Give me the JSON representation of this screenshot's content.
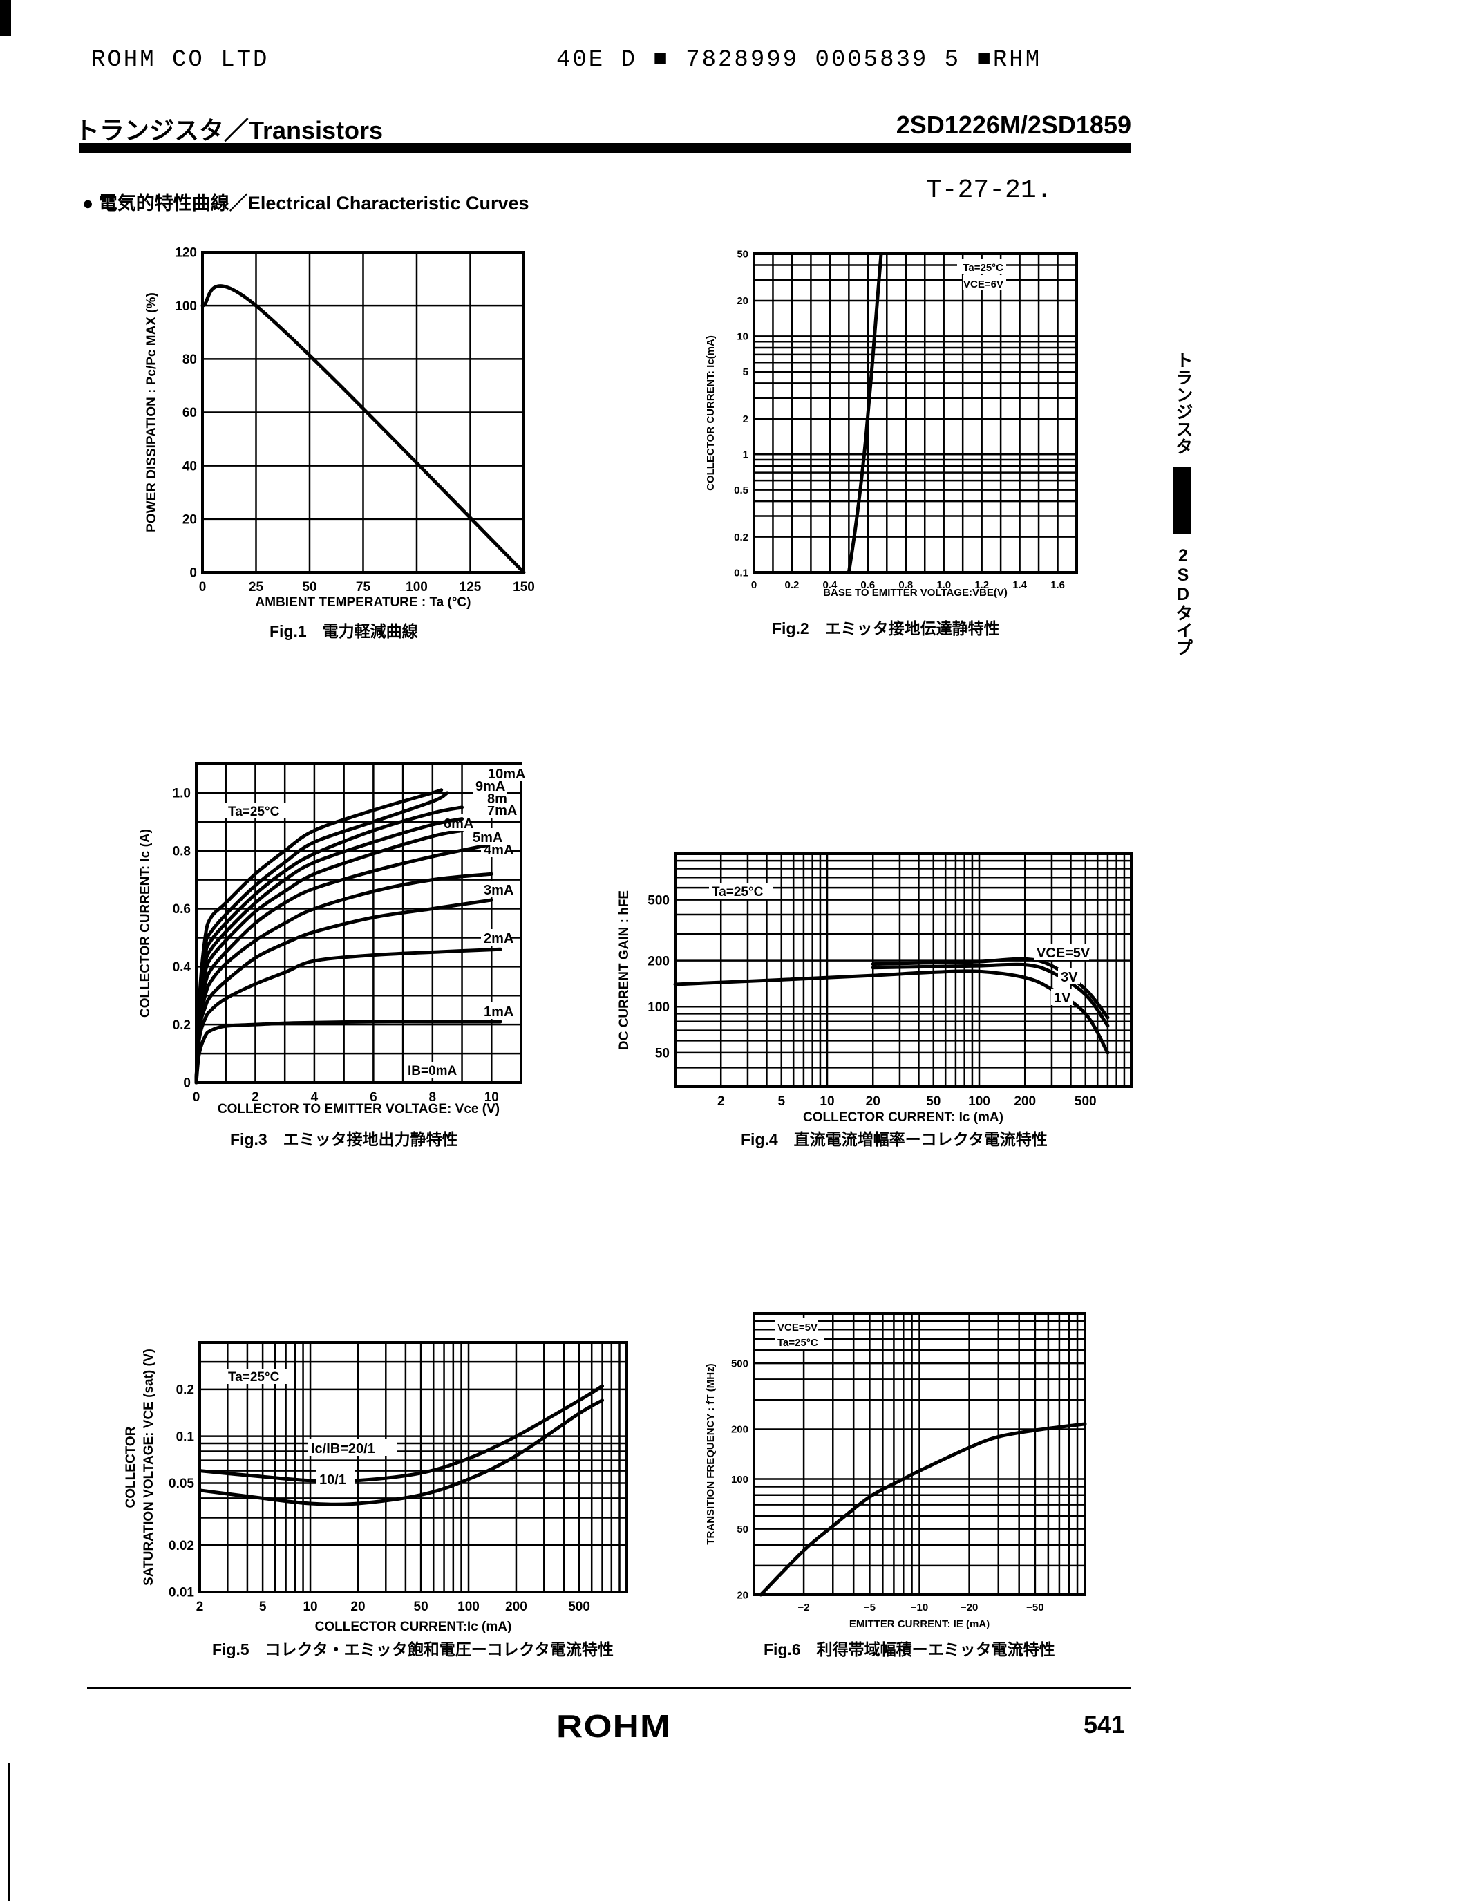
{
  "header": {
    "company": "ROHM CO LTD",
    "code_line": "40E D ■ 7828999 0005839 5 ■RHM",
    "category": "トランジスタ／Transistors",
    "part_numbers": "2SD1226M/2SD1859",
    "section": "● 電気的特性曲線／Electrical Characteristic Curves",
    "doc_code": "T-27-21."
  },
  "side_tab": {
    "top": "トランジスタ",
    "bottom": "2SDタイプ"
  },
  "footer": {
    "logo": "ROHM",
    "page": "541"
  },
  "chart_data": [
    {
      "type": "line",
      "caption": "Fig.1　電力軽減曲線",
      "xlabel": "AMBIENT TEMPERATURE : Ta (°C)",
      "ylabel": [
        "POWER DISSIPATION : Pc/Pc MAX (%)"
      ],
      "x_scale": "linear",
      "y_scale": "linear",
      "xlim": [
        0,
        150
      ],
      "ylim": [
        0,
        120
      ],
      "grid": true,
      "xticks": [
        0,
        25,
        50,
        75,
        100,
        125,
        150
      ],
      "xtick_labels": [
        "0",
        "25",
        "50",
        "75",
        "100",
        "125",
        "150"
      ],
      "yticks": [
        0,
        20,
        40,
        60,
        80,
        100,
        120
      ],
      "ytick_labels": [
        "0",
        "20",
        "40",
        "60",
        "80",
        "100",
        "120"
      ],
      "annotations": [],
      "series": [
        {
          "x": [
            0,
            25,
            150
          ],
          "y": [
            100,
            100,
            0
          ]
        }
      ]
    },
    {
      "type": "line",
      "caption": "Fig.2　エミッタ接地伝達静特性",
      "xlabel": "BASE TO EMITTER VOLTAGE:VBE(V)",
      "ylabel": [
        "COLLECTOR CURRENT: Ic(mA)"
      ],
      "x_scale": "linear",
      "y_scale": "log",
      "xlim": [
        0,
        1.7
      ],
      "ylim": [
        0.1,
        50
      ],
      "grid": true,
      "xticks": [
        0,
        0.2,
        0.4,
        0.6,
        0.8,
        1.0,
        1.2,
        1.4,
        1.6
      ],
      "xtick_labels": [
        "0",
        "0.2",
        "0.4",
        "0.6",
        "0.8",
        "1.0",
        "1.2",
        "1.4",
        "1.6"
      ],
      "yticks": [
        0.1,
        0.2,
        0.5,
        1,
        2,
        5,
        10,
        20,
        50
      ],
      "ytick_labels": [
        "0.1",
        "0.2",
        "0.5",
        "1",
        "2",
        "5",
        "10",
        "20",
        "50"
      ],
      "annotations": [
        "Ta=25°C",
        "VCE=6V"
      ],
      "series": [
        {
          "x": [
            0.5,
            0.53,
            0.56,
            0.59,
            0.62,
            0.65,
            0.67
          ],
          "y": [
            0.1,
            0.21,
            0.5,
            1.4,
            5,
            20,
            50
          ]
        }
      ]
    },
    {
      "type": "line",
      "caption": "Fig.3　エミッタ接地出力静特性",
      "xlabel": "COLLECTOR TO EMITTER VOLTAGE: Vce (V)",
      "ylabel": [
        "COLLECTOR CURRENT: Ic (A)"
      ],
      "x_scale": "linear",
      "y_scale": "linear",
      "xlim": [
        0,
        11
      ],
      "ylim": [
        0,
        1.1
      ],
      "grid": true,
      "xticks": [
        0,
        2,
        4,
        6,
        8,
        10
      ],
      "xtick_labels": [
        "0",
        "2",
        "4",
        "6",
        "8",
        "10"
      ],
      "yticks": [
        0,
        0.2,
        0.4,
        0.6,
        0.8,
        1.0
      ],
      "ytick_labels": [
        "0",
        "0.2",
        "0.4",
        "0.6",
        "0.8",
        "1.0"
      ],
      "annotations": [
        "Ta=25°C",
        "IB=0mA"
      ],
      "series": [
        {
          "name": "1mA",
          "x": [
            0,
            0.1,
            0.3,
            0.5,
            1,
            2,
            3,
            4,
            6,
            8,
            10.3
          ],
          "y": [
            0,
            0.1,
            0.16,
            0.18,
            0.195,
            0.2,
            0.205,
            0.207,
            0.21,
            0.21,
            0.21
          ]
        },
        {
          "name": "2mA",
          "x": [
            0,
            0.1,
            0.3,
            0.5,
            1,
            2,
            3,
            4,
            6,
            8,
            10.3
          ],
          "y": [
            0,
            0.15,
            0.22,
            0.25,
            0.29,
            0.34,
            0.38,
            0.42,
            0.44,
            0.45,
            0.46
          ]
        },
        {
          "name": "3mA",
          "x": [
            0,
            0.1,
            0.3,
            0.5,
            1,
            2,
            3,
            4,
            6,
            8,
            10
          ],
          "y": [
            0,
            0.18,
            0.26,
            0.3,
            0.35,
            0.43,
            0.48,
            0.52,
            0.57,
            0.6,
            0.63
          ]
        },
        {
          "name": "4mA",
          "x": [
            0,
            0.1,
            0.3,
            0.5,
            1,
            2,
            3,
            4,
            6,
            8,
            10
          ],
          "y": [
            0,
            0.2,
            0.3,
            0.35,
            0.41,
            0.49,
            0.55,
            0.6,
            0.66,
            0.7,
            0.72
          ]
        },
        {
          "name": "5mA",
          "x": [
            0,
            0.1,
            0.3,
            0.5,
            1,
            2,
            3,
            4,
            6,
            8,
            9.9
          ],
          "y": [
            0,
            0.22,
            0.34,
            0.39,
            0.45,
            0.55,
            0.62,
            0.67,
            0.73,
            0.78,
            0.82
          ]
        },
        {
          "name": "6mA",
          "x": [
            0,
            0.1,
            0.3,
            0.5,
            1,
            2,
            3,
            4,
            6,
            8,
            9
          ],
          "y": [
            0,
            0.24,
            0.38,
            0.43,
            0.49,
            0.59,
            0.66,
            0.72,
            0.79,
            0.85,
            0.87
          ]
        },
        {
          "name": "7mA",
          "x": [
            0,
            0.1,
            0.3,
            0.5,
            1,
            2,
            3,
            4,
            6,
            8,
            9
          ],
          "y": [
            0,
            0.25,
            0.41,
            0.46,
            0.52,
            0.62,
            0.7,
            0.76,
            0.83,
            0.89,
            0.91
          ]
        },
        {
          "name": "8m",
          "x": [
            0,
            0.1,
            0.3,
            0.5,
            1,
            2,
            3,
            4,
            6,
            8,
            9
          ],
          "y": [
            0,
            0.26,
            0.44,
            0.49,
            0.55,
            0.65,
            0.73,
            0.79,
            0.87,
            0.93,
            0.95
          ]
        },
        {
          "name": "9mA",
          "x": [
            0,
            0.1,
            0.3,
            0.5,
            1,
            2,
            3,
            4,
            6,
            8,
            8.5
          ],
          "y": [
            0,
            0.27,
            0.47,
            0.52,
            0.58,
            0.68,
            0.76,
            0.83,
            0.9,
            0.97,
            1.0
          ]
        },
        {
          "name": "10mA",
          "x": [
            0,
            0.1,
            0.3,
            0.5,
            1,
            2,
            3,
            4,
            6,
            8,
            8.3
          ],
          "y": [
            0,
            0.28,
            0.5,
            0.57,
            0.62,
            0.72,
            0.8,
            0.87,
            0.94,
            1.0,
            1.01
          ]
        }
      ]
    },
    {
      "type": "line",
      "caption": "Fig.4　直流電流増幅率ーコレクタ電流特性",
      "xlabel": "COLLECTOR CURRENT: Ic (mA)",
      "ylabel": [
        "DC CURRENT GAIN : hFE"
      ],
      "x_scale": "log",
      "y_scale": "log",
      "xlim": [
        1,
        1000
      ],
      "ylim": [
        30,
        1000
      ],
      "grid": true,
      "xticks": [
        2,
        5,
        10,
        20,
        50,
        100,
        200,
        500
      ],
      "xtick_labels": [
        "2",
        "5",
        "10",
        "20",
        "50",
        "100",
        "200",
        "500"
      ],
      "yticks": [
        50,
        100,
        200,
        500
      ],
      "ytick_labels": [
        "50",
        "100",
        "200",
        "500"
      ],
      "annotations": [
        "Ta=25°C"
      ],
      "series": [
        {
          "name": "VCE=5V",
          "x": [
            20,
            50,
            100,
            200,
            300,
            500,
            700
          ],
          "y": [
            190,
            194,
            197,
            205,
            185,
            130,
            85
          ]
        },
        {
          "name": "3V",
          "x": [
            20,
            50,
            100,
            200,
            300,
            500,
            700
          ],
          "y": [
            180,
            183,
            185,
            188,
            168,
            120,
            75
          ]
        },
        {
          "name": "1V",
          "x": [
            1,
            5,
            20,
            50,
            100,
            200,
            300,
            500,
            700
          ],
          "y": [
            140,
            150,
            160,
            168,
            170,
            155,
            130,
            90,
            50
          ]
        }
      ]
    },
    {
      "type": "line",
      "caption": "Fig.5　コレクタ・エミッタ飽和電圧ーコレクタ電流特性",
      "xlabel": "COLLECTOR CURRENT:Ic (mA)",
      "ylabel": [
        "COLLECTOR",
        "SATURATION VOLTAGE: VCE (sat) (V)"
      ],
      "x_scale": "log",
      "y_scale": "log",
      "xlim": [
        2,
        1000
      ],
      "ylim": [
        0.01,
        0.4
      ],
      "grid": true,
      "xticks": [
        2,
        5,
        10,
        20,
        50,
        100,
        200,
        500
      ],
      "xtick_labels": [
        "2",
        "5",
        "10",
        "20",
        "50",
        "100",
        "200",
        "500"
      ],
      "yticks": [
        0.01,
        0.02,
        0.05,
        0.1,
        0.2
      ],
      "ytick_labels": [
        "0.01",
        "0.02",
        "0.05",
        "0.1",
        "0.2"
      ],
      "annotations": [
        "Ta=25°C"
      ],
      "series": [
        {
          "name": "Ic/IB=20/1",
          "x": [
            2,
            5,
            10,
            20,
            50,
            100,
            200,
            500,
            700
          ],
          "y": [
            0.06,
            0.055,
            0.052,
            0.052,
            0.058,
            0.072,
            0.1,
            0.17,
            0.21
          ]
        },
        {
          "name": "10/1",
          "x": [
            2,
            5,
            10,
            20,
            50,
            100,
            200,
            500,
            700
          ],
          "y": [
            0.045,
            0.04,
            0.037,
            0.037,
            0.042,
            0.053,
            0.075,
            0.14,
            0.17
          ]
        }
      ]
    },
    {
      "type": "line",
      "caption": "Fig.6　利得帯域幅積ーエミッタ電流特性",
      "xlabel": "EMITTER CURRENT: IE (mA)",
      "ylabel": [
        "TRANSITION FREQUENCY : fT (MHz)"
      ],
      "x_scale": "log",
      "y_scale": "log",
      "xlim": [
        -1,
        -100
      ],
      "ylim": [
        20,
        1000
      ],
      "grid": true,
      "xticks": [
        -2,
        -5,
        -10,
        -20,
        -50
      ],
      "xtick_labels": [
        "−2",
        "−5",
        "−10",
        "−20",
        "−50"
      ],
      "yticks": [
        20,
        50,
        100,
        200,
        500
      ],
      "ytick_labels": [
        "20",
        "50",
        "100",
        "200",
        "500"
      ],
      "annotations": [
        "VCE=5V",
        "Ta=25°C"
      ],
      "series": [
        {
          "x": [
            -1.1,
            -2,
            -3,
            -5,
            -8,
            -10,
            -20,
            -30,
            -50,
            -100
          ],
          "y": [
            20,
            37,
            52,
            78,
            100,
            112,
            155,
            180,
            197,
            215
          ]
        }
      ]
    }
  ]
}
